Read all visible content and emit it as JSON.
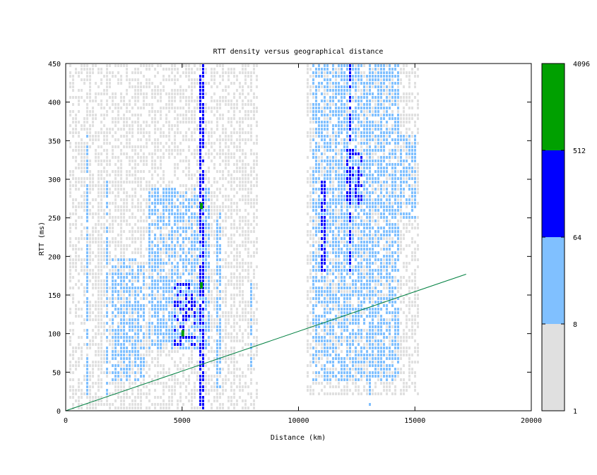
{
  "chart_data": {
    "type": "heatmap",
    "title": "RTT density versus geographical distance",
    "xlabel": "Distance (km)",
    "ylabel": "RTT (ms)",
    "xlim": [
      0,
      20000
    ],
    "ylim": [
      0,
      450
    ],
    "xticks": [
      "0",
      "5000",
      "10000",
      "15000",
      "20000"
    ],
    "yticks": [
      "0",
      "50",
      "100",
      "150",
      "200",
      "250",
      "300",
      "350",
      "400",
      "450"
    ],
    "colorbar": {
      "scale": "log",
      "range": [
        1,
        4096
      ],
      "ticks": [
        "1",
        "8",
        "64",
        "512",
        "4096"
      ],
      "bands": [
        {
          "from": 1,
          "to": 8,
          "color": "#e0e0e0"
        },
        {
          "from": 8,
          "to": 64,
          "color": "#80c0ff"
        },
        {
          "from": 64,
          "to": 512,
          "color": "#0000ff"
        },
        {
          "from": 512,
          "to": 4096,
          "color": "#00a000"
        }
      ]
    },
    "reference_line": {
      "color": "#008040",
      "x": [
        0,
        17200
      ],
      "y": [
        0,
        177
      ]
    },
    "density_regions": [
      {
        "level": 1,
        "x": [
          150,
          8200
        ],
        "y": [
          0,
          450
        ]
      },
      {
        "level": 1,
        "x": [
          10300,
          15100
        ],
        "y": [
          20,
          450
        ]
      },
      {
        "level": 2,
        "x": [
          3500,
          6200
        ],
        "y": [
          80,
          290
        ]
      },
      {
        "level": 2,
        "x": [
          1900,
          3400
        ],
        "y": [
          40,
          200
        ]
      },
      {
        "level": 2,
        "x": [
          10500,
          14300
        ],
        "y": [
          40,
          450
        ]
      },
      {
        "level": 2,
        "x": [
          14300,
          15000
        ],
        "y": [
          250,
          360
        ]
      },
      {
        "level": 3,
        "x": [
          4600,
          5600
        ],
        "y": [
          85,
          170
        ]
      },
      {
        "level": 3,
        "x": [
          12000,
          12700
        ],
        "y": [
          270,
          340
        ]
      }
    ],
    "column_streaks": [
      {
        "x": 5800,
        "y": [
          0,
          450
        ],
        "level": 3
      },
      {
        "x": 13000,
        "y": [
          0,
          450
        ],
        "level": 2
      },
      {
        "x": 12200,
        "y": [
          180,
          450
        ],
        "level": 3
      },
      {
        "x": 11000,
        "y": [
          180,
          300
        ],
        "level": 3
      },
      {
        "x": 900,
        "y": [
          10,
          360
        ],
        "level": 2
      },
      {
        "x": 1400,
        "y": [
          10,
          310
        ],
        "level": 1
      },
      {
        "x": 1700,
        "y": [
          20,
          300
        ],
        "level": 2
      },
      {
        "x": 7900,
        "y": [
          60,
          170
        ],
        "level": 2
      },
      {
        "x": 6500,
        "y": [
          30,
          260
        ],
        "level": 2
      },
      {
        "x": 2400,
        "y": [
          10,
          270
        ],
        "level": 1
      }
    ],
    "hotspots": [
      {
        "x": 5800,
        "y": 265,
        "level": 4
      },
      {
        "x": 5800,
        "y": 162,
        "level": 4
      },
      {
        "x": 5000,
        "y": 100,
        "level": 4
      }
    ]
  }
}
